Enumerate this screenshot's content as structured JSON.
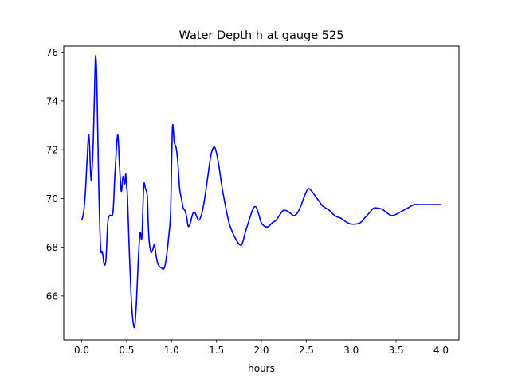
{
  "chart_data": {
    "type": "line",
    "title": "Water Depth h at gauge 525",
    "xlabel": "hours",
    "ylabel": "",
    "xlim": [
      -0.2,
      4.2
    ],
    "ylim": [
      64.2,
      76.25
    ],
    "xticks": [
      0.0,
      0.5,
      1.0,
      1.5,
      2.0,
      2.5,
      3.0,
      3.5,
      4.0
    ],
    "xtick_labels": [
      "0.0",
      "0.5",
      "1.0",
      "1.5",
      "2.0",
      "2.5",
      "3.0",
      "3.5",
      "4.0"
    ],
    "yticks": [
      66,
      68,
      70,
      72,
      74,
      76
    ],
    "ytick_labels": [
      "66",
      "68",
      "70",
      "72",
      "74",
      "76"
    ],
    "grid": false,
    "series": [
      {
        "color": "#0000ff",
        "x": [
          0.0,
          0.02,
          0.04,
          0.06,
          0.08,
          0.1,
          0.11,
          0.13,
          0.15,
          0.16,
          0.17,
          0.19,
          0.21,
          0.23,
          0.25,
          0.27,
          0.29,
          0.31,
          0.33,
          0.35,
          0.37,
          0.4,
          0.42,
          0.44,
          0.46,
          0.48,
          0.49,
          0.5,
          0.51,
          0.53,
          0.55,
          0.57,
          0.59,
          0.61,
          0.63,
          0.65,
          0.67,
          0.69,
          0.71,
          0.73,
          0.74,
          0.75,
          0.77,
          0.79,
          0.81,
          0.83,
          0.85,
          0.87,
          0.89,
          0.91,
          0.93,
          0.95,
          0.97,
          0.99,
          1.01,
          1.03,
          1.05,
          1.07,
          1.09,
          1.11,
          1.13,
          1.15,
          1.17,
          1.18,
          1.19,
          1.21,
          1.23,
          1.25,
          1.27,
          1.3,
          1.33,
          1.36,
          1.4,
          1.44,
          1.48,
          1.52,
          1.56,
          1.6,
          1.64,
          1.68,
          1.72,
          1.76,
          1.78,
          1.8,
          1.82,
          1.85,
          1.88,
          1.91,
          1.94,
          1.97,
          2.0,
          2.04,
          2.08,
          2.12,
          2.16,
          2.2,
          2.24,
          2.28,
          2.32,
          2.36,
          2.4,
          2.44,
          2.48,
          2.52,
          2.56,
          2.6,
          2.64,
          2.68,
          2.72,
          2.76,
          2.8,
          2.84,
          2.88,
          2.92,
          2.96,
          3.0,
          3.05,
          3.1,
          3.15,
          3.2,
          3.25,
          3.3,
          3.35,
          3.4,
          3.45,
          3.5,
          3.55,
          3.6,
          3.65,
          3.7,
          3.75,
          3.8,
          3.85,
          3.9,
          3.95,
          4.0
        ],
        "y": [
          69.1,
          69.4,
          70.2,
          71.6,
          72.6,
          71.0,
          70.9,
          72.5,
          75.5,
          75.7,
          74.5,
          70.5,
          68.0,
          67.8,
          67.3,
          67.5,
          69.0,
          69.3,
          69.3,
          69.5,
          71.0,
          72.6,
          71.4,
          70.3,
          70.9,
          70.6,
          71.0,
          70.5,
          70.0,
          67.8,
          66.0,
          65.0,
          64.75,
          65.8,
          67.5,
          68.6,
          68.4,
          70.5,
          70.4,
          70.1,
          69.0,
          68.3,
          67.8,
          67.9,
          68.1,
          67.6,
          67.3,
          67.2,
          67.15,
          67.1,
          67.3,
          67.8,
          68.5,
          69.5,
          72.9,
          72.3,
          72.1,
          71.5,
          70.4,
          70.0,
          69.6,
          69.5,
          69.2,
          68.95,
          68.85,
          69.0,
          69.3,
          69.45,
          69.35,
          69.1,
          69.3,
          69.8,
          70.8,
          71.8,
          72.1,
          71.5,
          70.5,
          69.7,
          69.0,
          68.6,
          68.3,
          68.1,
          68.1,
          68.3,
          68.6,
          68.95,
          69.3,
          69.6,
          69.65,
          69.35,
          69.0,
          68.85,
          68.85,
          69.0,
          69.1,
          69.3,
          69.5,
          69.5,
          69.4,
          69.3,
          69.4,
          69.7,
          70.1,
          70.4,
          70.3,
          70.1,
          69.9,
          69.7,
          69.6,
          69.5,
          69.35,
          69.25,
          69.2,
          69.1,
          69.0,
          68.95,
          68.95,
          69.0,
          69.2,
          69.4,
          69.6,
          69.6,
          69.55,
          69.4,
          69.3,
          69.35,
          69.45,
          69.55,
          69.65,
          69.75,
          69.75,
          69.75,
          69.75,
          69.75,
          69.75,
          69.75
        ]
      }
    ]
  }
}
